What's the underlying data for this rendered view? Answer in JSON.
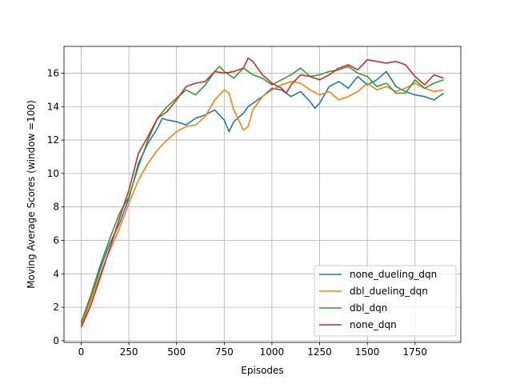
{
  "chart_data": {
    "type": "line",
    "xlabel": "Episodes",
    "ylabel": "Moving Average Scores (window =100)",
    "xlim": [
      -90,
      1990
    ],
    "ylim": [
      -0.1,
      17.6
    ],
    "xticks": [
      0,
      250,
      500,
      750,
      1000,
      1250,
      1500,
      1750
    ],
    "yticks": [
      0,
      2,
      4,
      6,
      8,
      10,
      12,
      14,
      16
    ],
    "grid": true,
    "legend_position": "lower-right",
    "series": [
      {
        "name": "none_dueling_dqn",
        "color": "#1f77b4",
        "points": [
          [
            0,
            1.0
          ],
          [
            50,
            2.6
          ],
          [
            100,
            4.3
          ],
          [
            150,
            5.8
          ],
          [
            200,
            7.0
          ],
          [
            250,
            8.5
          ],
          [
            300,
            10.6
          ],
          [
            350,
            11.8
          ],
          [
            400,
            12.7
          ],
          [
            425,
            13.3
          ],
          [
            450,
            13.2
          ],
          [
            500,
            13.1
          ],
          [
            550,
            12.9
          ],
          [
            600,
            13.3
          ],
          [
            650,
            13.5
          ],
          [
            700,
            13.8
          ],
          [
            750,
            13.2
          ],
          [
            775,
            12.5
          ],
          [
            800,
            13.1
          ],
          [
            850,
            13.6
          ],
          [
            875,
            14.0
          ],
          [
            900,
            14.2
          ],
          [
            950,
            14.6
          ],
          [
            1000,
            15.1
          ],
          [
            1050,
            15.0
          ],
          [
            1100,
            14.6
          ],
          [
            1150,
            14.9
          ],
          [
            1200,
            14.3
          ],
          [
            1225,
            13.9
          ],
          [
            1250,
            14.2
          ],
          [
            1300,
            15.2
          ],
          [
            1350,
            15.5
          ],
          [
            1400,
            15.1
          ],
          [
            1450,
            15.8
          ],
          [
            1500,
            15.3
          ],
          [
            1550,
            15.6
          ],
          [
            1600,
            16.1
          ],
          [
            1650,
            15.2
          ],
          [
            1700,
            14.9
          ],
          [
            1750,
            14.7
          ],
          [
            1800,
            14.6
          ],
          [
            1850,
            14.4
          ],
          [
            1900,
            14.8
          ]
        ]
      },
      {
        "name": "dbl_dueling_dqn",
        "color": "#ff7f0e",
        "points": [
          [
            0,
            0.9
          ],
          [
            50,
            2.4
          ],
          [
            100,
            4.0
          ],
          [
            150,
            5.4
          ],
          [
            200,
            6.7
          ],
          [
            250,
            8.2
          ],
          [
            300,
            9.6
          ],
          [
            350,
            10.6
          ],
          [
            400,
            11.4
          ],
          [
            450,
            12.0
          ],
          [
            500,
            12.5
          ],
          [
            550,
            12.8
          ],
          [
            600,
            12.9
          ],
          [
            650,
            13.4
          ],
          [
            700,
            14.4
          ],
          [
            750,
            15.0
          ],
          [
            775,
            14.8
          ],
          [
            800,
            13.8
          ],
          [
            850,
            12.6
          ],
          [
            875,
            12.8
          ],
          [
            900,
            13.8
          ],
          [
            950,
            14.6
          ],
          [
            1000,
            15.0
          ],
          [
            1050,
            15.3
          ],
          [
            1100,
            15.5
          ],
          [
            1150,
            15.4
          ],
          [
            1200,
            15.0
          ],
          [
            1250,
            14.7
          ],
          [
            1300,
            14.9
          ],
          [
            1350,
            14.4
          ],
          [
            1400,
            14.6
          ],
          [
            1450,
            14.9
          ],
          [
            1500,
            15.4
          ],
          [
            1550,
            15.0
          ],
          [
            1600,
            15.2
          ],
          [
            1650,
            14.9
          ],
          [
            1700,
            15.1
          ],
          [
            1750,
            15.4
          ],
          [
            1800,
            15.1
          ],
          [
            1850,
            14.9
          ],
          [
            1900,
            15.0
          ]
        ]
      },
      {
        "name": "dbl_dqn",
        "color": "#2ca02c",
        "points": [
          [
            0,
            1.1
          ],
          [
            50,
            2.7
          ],
          [
            100,
            4.5
          ],
          [
            150,
            6.1
          ],
          [
            200,
            7.6
          ],
          [
            250,
            8.6
          ],
          [
            300,
            10.4
          ],
          [
            350,
            12.0
          ],
          [
            400,
            13.3
          ],
          [
            450,
            14.0
          ],
          [
            500,
            14.5
          ],
          [
            550,
            15.0
          ],
          [
            600,
            14.7
          ],
          [
            650,
            15.3
          ],
          [
            700,
            16.1
          ],
          [
            725,
            16.4
          ],
          [
            750,
            16.1
          ],
          [
            800,
            15.7
          ],
          [
            850,
            16.3
          ],
          [
            900,
            15.9
          ],
          [
            950,
            15.7
          ],
          [
            1000,
            15.3
          ],
          [
            1050,
            15.6
          ],
          [
            1100,
            15.9
          ],
          [
            1150,
            16.3
          ],
          [
            1200,
            15.8
          ],
          [
            1250,
            15.9
          ],
          [
            1300,
            16.1
          ],
          [
            1350,
            16.2
          ],
          [
            1400,
            16.4
          ],
          [
            1450,
            16.0
          ],
          [
            1500,
            15.8
          ],
          [
            1550,
            15.2
          ],
          [
            1600,
            15.4
          ],
          [
            1650,
            14.8
          ],
          [
            1700,
            14.8
          ],
          [
            1750,
            15.6
          ],
          [
            1800,
            15.1
          ],
          [
            1850,
            15.4
          ],
          [
            1900,
            15.6
          ]
        ]
      },
      {
        "name": "none_dqn",
        "color": "#d62728",
        "points": [
          [
            0,
            0.8
          ],
          [
            50,
            2.1
          ],
          [
            100,
            3.8
          ],
          [
            150,
            5.5
          ],
          [
            200,
            7.3
          ],
          [
            250,
            9.0
          ],
          [
            300,
            11.2
          ],
          [
            350,
            12.2
          ],
          [
            400,
            13.3
          ],
          [
            450,
            13.7
          ],
          [
            500,
            14.4
          ],
          [
            550,
            15.2
          ],
          [
            600,
            15.4
          ],
          [
            650,
            15.5
          ],
          [
            700,
            16.1
          ],
          [
            750,
            16.0
          ],
          [
            800,
            16.1
          ],
          [
            850,
            16.3
          ],
          [
            875,
            16.9
          ],
          [
            900,
            16.7
          ],
          [
            950,
            15.9
          ],
          [
            1000,
            15.4
          ],
          [
            1050,
            15.1
          ],
          [
            1075,
            14.8
          ],
          [
            1100,
            15.3
          ],
          [
            1150,
            15.9
          ],
          [
            1200,
            15.8
          ],
          [
            1250,
            15.6
          ],
          [
            1300,
            15.9
          ],
          [
            1350,
            16.3
          ],
          [
            1400,
            16.5
          ],
          [
            1450,
            16.2
          ],
          [
            1500,
            16.8
          ],
          [
            1550,
            16.7
          ],
          [
            1600,
            16.6
          ],
          [
            1650,
            16.7
          ],
          [
            1700,
            16.5
          ],
          [
            1750,
            15.8
          ],
          [
            1800,
            15.3
          ],
          [
            1850,
            15.9
          ],
          [
            1900,
            15.7
          ]
        ]
      }
    ]
  }
}
